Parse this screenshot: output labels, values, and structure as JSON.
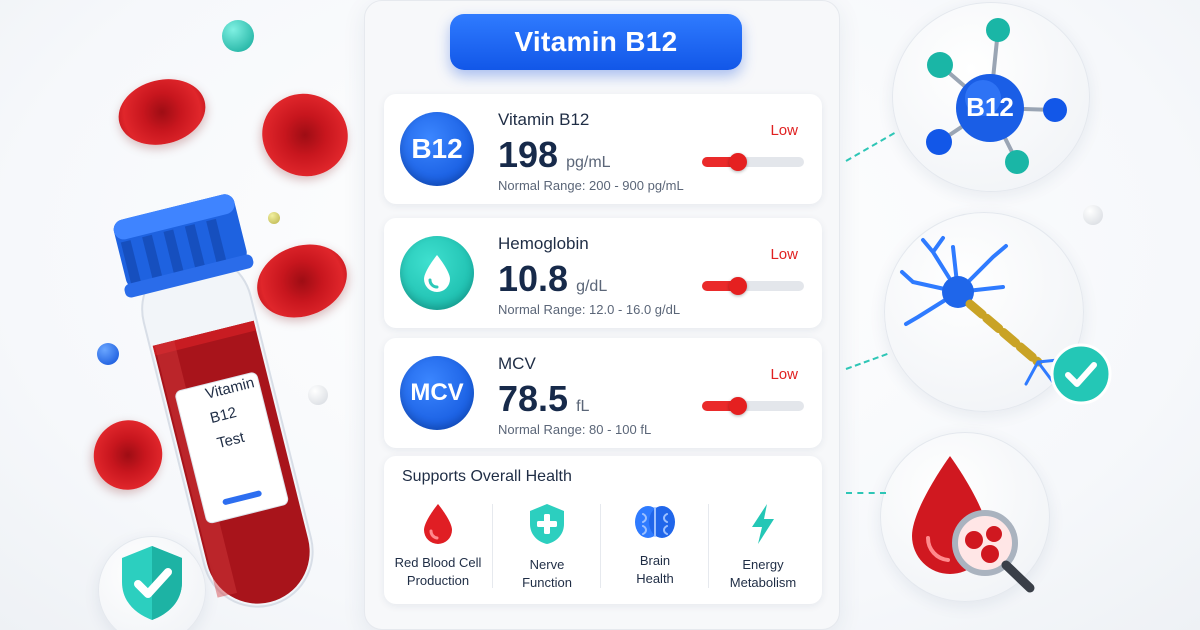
{
  "header": {
    "title": "Vitamin B12"
  },
  "tube": {
    "label_line1": "Vitamin",
    "label_line2": "B12",
    "label_line3": "Test"
  },
  "tests": [
    {
      "badge": "B12",
      "name": "Vitamin B12",
      "value": "198",
      "unit": "pg/mL",
      "range": "Normal Range: 200 - 900 pg/mL",
      "status": "Low",
      "level": 0.35,
      "badge_color": "blue"
    },
    {
      "badge": "drop-icon",
      "name": "Hemoglobin",
      "value": "10.8",
      "unit": "g/dL",
      "range": "Normal Range: 12.0 - 16.0 g/dL",
      "status": "Low",
      "level": 0.35,
      "badge_color": "teal"
    },
    {
      "badge": "MCV",
      "name": "MCV",
      "value": "78.5",
      "unit": "fL",
      "range": "Normal Range: 80 - 100 fL",
      "status": "Low",
      "level": 0.35,
      "badge_color": "blue"
    }
  ],
  "support": {
    "title": "Supports Overall Health",
    "items": [
      {
        "icon": "blood-drop-icon",
        "line1": "Red Blood Cell",
        "line2": "Production"
      },
      {
        "icon": "shield-plus-icon",
        "line1": "Nerve",
        "line2": "Function"
      },
      {
        "icon": "brain-icon",
        "line1": "Brain",
        "line2": "Health"
      },
      {
        "icon": "lightning-icon",
        "line1": "Energy",
        "line2": "Metabolism"
      }
    ]
  },
  "molecule": {
    "label": "B12"
  },
  "colors": {
    "accent_blue": "#1257e8",
    "teal": "#12b3a4",
    "low_red": "#e02121"
  }
}
